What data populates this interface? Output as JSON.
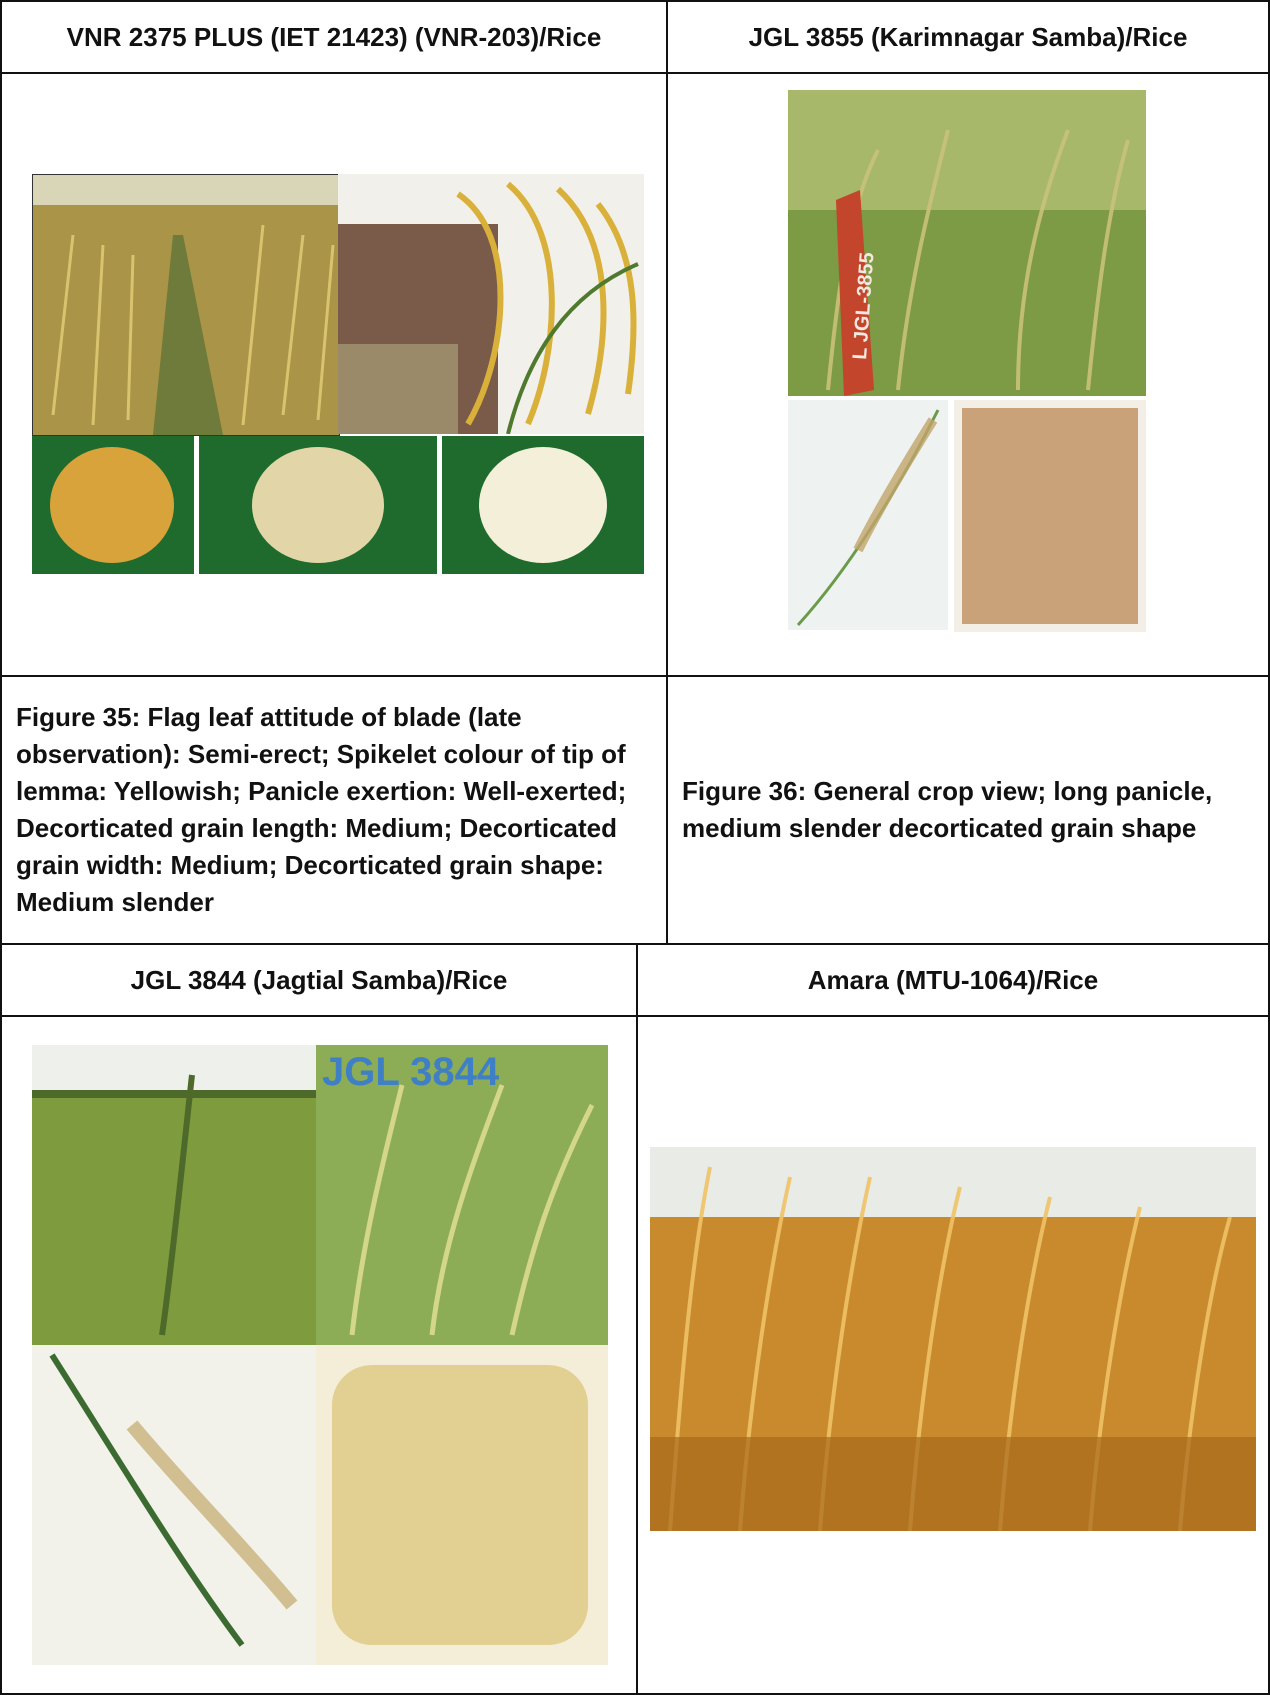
{
  "rows": [
    {
      "left": {
        "title": "VNR 2375 PLUS (IET 21423) (VNR-203)/Rice"
      },
      "right": {
        "title": "JGL 3855 (Karimnagar Samba)/Rice"
      }
    },
    {
      "left": {
        "caption": "Figure 35: Flag leaf attitude of blade (late observation): Semi-erect; Spikelet colour of tip of lemma: Yellowish; Panicle exertion: Well-exerted; Decorticated grain length: Medium; Decorticated grain width: Medium; Decorticated grain shape: Medium slender"
      },
      "right": {
        "caption": "Figure 36: General crop view; long panicle, medium slender decorticated grain shape"
      }
    },
    {
      "left": {
        "title": "JGL 3844 (Jagtial Samba)/Rice"
      },
      "right": {
        "title": "Amara (MTU-1064)/Rice"
      }
    }
  ],
  "photo_labels": {
    "stake_label": "L JGL-3855",
    "jgl3844_logo": "JGL 3844"
  }
}
